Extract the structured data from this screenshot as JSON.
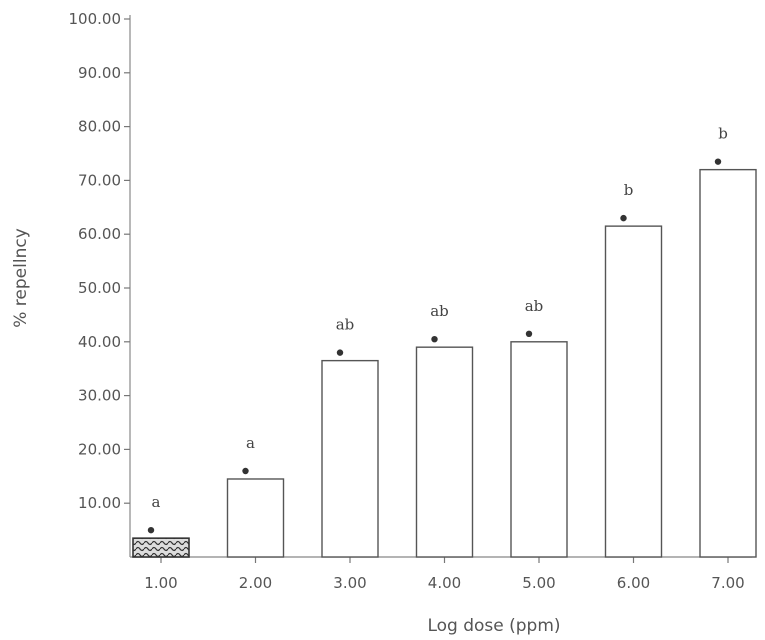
{
  "chart_data": {
    "type": "bar",
    "xlabel": "Log dose (ppm)",
    "ylabel": "% repellncy",
    "categories": [
      "1.00",
      "2.00",
      "3.00",
      "4.00",
      "5.00",
      "6.00",
      "7.00"
    ],
    "values": [
      3.5,
      14.5,
      36.5,
      39.0,
      40.0,
      61.5,
      72.0
    ],
    "significance_labels": [
      "a",
      "a",
      "ab",
      "ab",
      "ab",
      "b",
      "b"
    ],
    "y_tick_labels": [
      "10.00",
      "20.00",
      "30.00",
      "40.00",
      "50.00",
      "60.00",
      "70.00",
      "80.00",
      "90.00",
      "100.00"
    ],
    "ylim": [
      0,
      100
    ],
    "grid": false,
    "legend": "none",
    "colors": {
      "bar_fill": "#ffffff",
      "bar_stroke": "#555555",
      "text": "#555555"
    }
  }
}
